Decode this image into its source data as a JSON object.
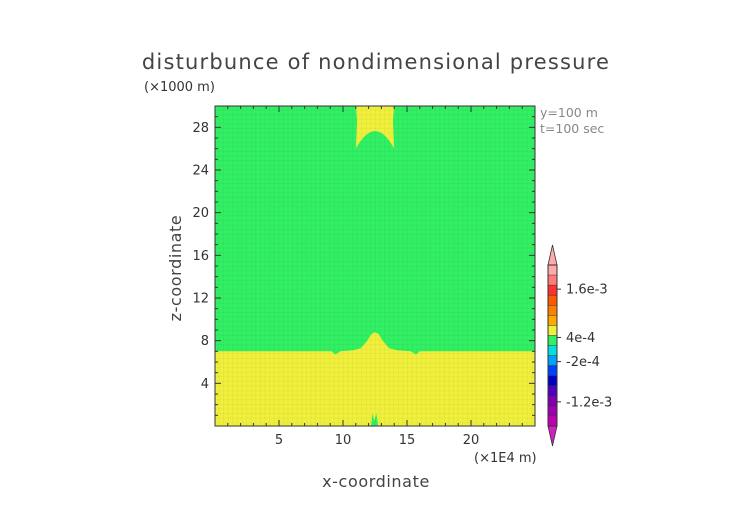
{
  "chart_data": {
    "type": "heatmap",
    "title": "disturbunce of nondimensional pressure",
    "xlabel": "x-coordinate",
    "ylabel": "z-coordinate",
    "x_unit": "(×1E4 m)",
    "y_unit": "(×1000 m)",
    "annotations": [
      "y=100 m",
      "t=100 sec"
    ],
    "xlim": [
      0,
      25
    ],
    "ylim": [
      0,
      30
    ],
    "x_ticks": [
      5,
      10,
      15,
      20
    ],
    "y_ticks": [
      4,
      8,
      12,
      16,
      20,
      24,
      28
    ],
    "regions": [
      {
        "label": "lower layer",
        "level": "0 to 4e-4",
        "color": "#f0f03c",
        "z_from": 0,
        "z_to": 7
      },
      {
        "label": "upper layer",
        "level": "-2e-4 to 0",
        "color": "#32f064",
        "z_from": 7,
        "z_to": 30
      },
      {
        "label": "central bump",
        "x_center": 12.5,
        "z_peak": 8.8
      },
      {
        "label": "top cap",
        "x_center": 12.5,
        "x_from": 11,
        "x_to": 14,
        "z_from": 26,
        "z_to": 30
      },
      {
        "label": "bottom spike",
        "x_center": 12.5,
        "z_to": 1.2
      }
    ],
    "colorbar": {
      "tick_labels": [
        "1.6e-3",
        "4e-4",
        "-2e-4",
        "-1.2e-3"
      ],
      "tick_values": [
        0.0016,
        0.0004,
        -0.0002,
        -0.0012
      ],
      "range": [
        -0.0018,
        0.0022
      ],
      "colors_top_to_bottom": [
        "#ffaaaa",
        "#ff7a7a",
        "#ff3030",
        "#ff5a00",
        "#ff8000",
        "#ffaa00",
        "#f0f03c",
        "#32f064",
        "#00e0e0",
        "#00a0ff",
        "#0040ff",
        "#0000c0",
        "#5000c0",
        "#8000b0",
        "#a000b0",
        "#c000b0"
      ]
    }
  }
}
